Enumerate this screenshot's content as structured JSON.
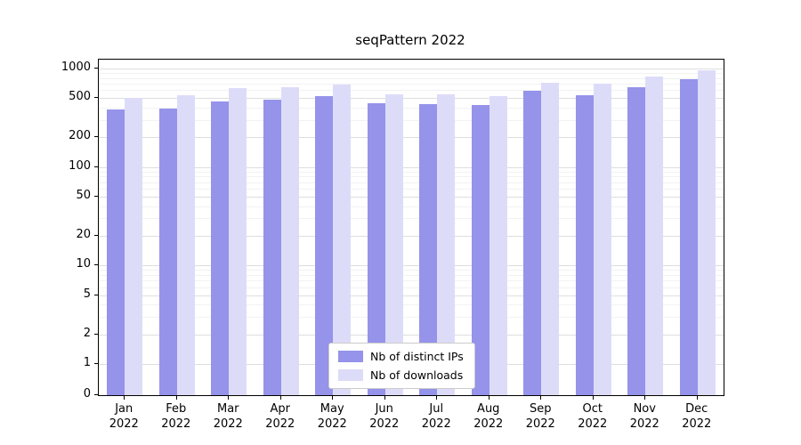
{
  "title": "seqPattern 2022",
  "chart_data": {
    "type": "bar",
    "title": "seqPattern 2022",
    "yscale": "log",
    "ylim": [
      0,
      1000
    ],
    "yticks": [
      0,
      1,
      2,
      5,
      10,
      20,
      50,
      100,
      200,
      500,
      1000
    ],
    "grid": "horizontal",
    "legend_position": "lower center",
    "categories": [
      "Jan 2022",
      "Feb 2022",
      "Mar 2022",
      "Apr 2022",
      "May 2022",
      "Jun 2022",
      "Jul 2022",
      "Aug 2022",
      "Sep 2022",
      "Oct 2022",
      "Nov 2022",
      "Dec 2022"
    ],
    "series": [
      {
        "name": "Nb of distinct IPs",
        "color": "#9593ea",
        "values": [
          380,
          395,
          465,
          480,
          520,
          445,
          430,
          425,
          590,
          530,
          640,
          780
        ]
      },
      {
        "name": "Nb of downloads",
        "color": "#dddcf8",
        "values": [
          500,
          530,
          630,
          640,
          690,
          550,
          545,
          525,
          720,
          700,
          830,
          960
        ]
      }
    ]
  }
}
